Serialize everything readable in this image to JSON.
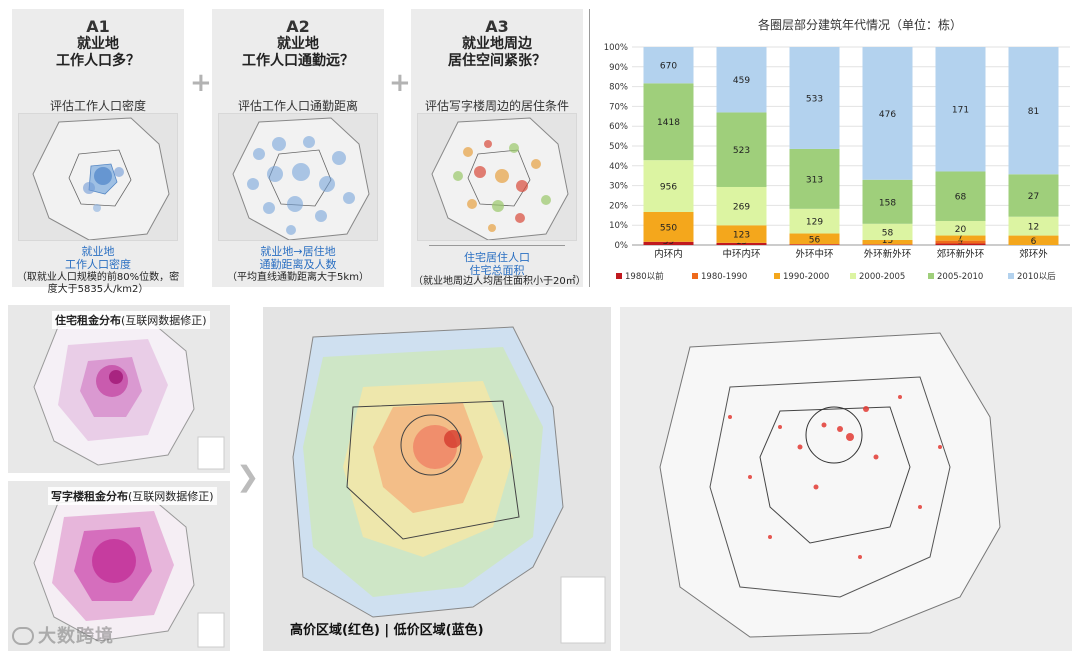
{
  "panels": [
    {
      "code": "A1",
      "q1": "就业地",
      "q2": "工作人口多？",
      "sub": "评估工作人口密度",
      "cap1": "就业地",
      "cap2": "工作人口密度",
      "note1": "（取就业人口规模的前80%位数，密",
      "note2": "度大于5835人/km2）"
    },
    {
      "code": "A2",
      "q1": "就业地",
      "q2": "工作人口通勤远？",
      "sub": "评估工作人口通勤距离",
      "cap1": "就业地→居住地",
      "cap2": "通勤距离及人数",
      "note1": "（平均直线通勤距离大于5km）",
      "note2": ""
    },
    {
      "code": "A3",
      "q1": "就业地周边",
      "q2": "居住空间紧张？",
      "sub": "评估写字楼周边的居住条件",
      "cap1": "住宅居住人口",
      "cap2": "住宅总面积",
      "note1": "（就业地周边人均居住面积小于20㎡）",
      "note2": ""
    }
  ],
  "plus_sign": "+",
  "chart_data": {
    "type": "bar",
    "stacked": true,
    "normalized": true,
    "title": "各圈层部分建筑年代情况（单位：栋）",
    "categories": [
      "内环内",
      "中环内环",
      "外环中环",
      "外环新外环",
      "郊环新外环",
      "郊环外"
    ],
    "y_ticks": [
      "0%",
      "10%",
      "20%",
      "30%",
      "40%",
      "50%",
      "60%",
      "70%",
      "80%",
      "90%",
      "100%"
    ],
    "ylim": [
      0,
      100
    ],
    "legend_position": "bottom",
    "series": [
      {
        "name": "1980以前",
        "color": "#c0191f",
        "values": [
          59,
          15,
          4,
          1,
          2,
          0
        ]
      },
      {
        "name": "1980-1990",
        "color": "#ee6a1b",
        "values": [
          0,
          0,
          0,
          2,
          4,
          0
        ]
      },
      {
        "name": "1990-2000",
        "color": "#f4a71c",
        "values": [
          550,
          123,
          56,
          15,
          7,
          6
        ]
      },
      {
        "name": "2000-2005",
        "color": "#dcf4a2",
        "values": [
          956,
          269,
          129,
          58,
          20,
          12
        ]
      },
      {
        "name": "2005-2010",
        "color": "#9fcf7b",
        "values": [
          1418,
          523,
          313,
          158,
          68,
          27
        ]
      },
      {
        "name": "2010以后",
        "color": "#b3d2ee",
        "values": [
          670,
          459,
          533,
          476,
          171,
          81
        ]
      }
    ],
    "data_labels": [
      [
        "59",
        "",
        "550",
        "956",
        "1418",
        "670"
      ],
      [
        "15",
        "",
        "123",
        "269",
        "523",
        "459"
      ],
      [
        "4",
        "",
        "56",
        "129",
        "313",
        "533"
      ],
      [
        "1",
        "2",
        "15",
        "58",
        "158",
        "476"
      ],
      [
        "2",
        "4",
        "7",
        "20",
        "68",
        "171"
      ],
      [
        "",
        "",
        "6",
        "12",
        "27",
        "81"
      ]
    ]
  },
  "maps": {
    "residential_rent_title": "住宅租金分布",
    "residential_rent_note": "(互联网数据修正)",
    "office_rent_title": "写字楼租金分布",
    "office_rent_note": "(互联网数据修正)",
    "price_caption": "高价区域(红色) | 低价区域(蓝色)"
  },
  "watermark": "大数跨境",
  "colors": {
    "panel_bg": "#ececec",
    "caption_blue": "#2a6fc2",
    "plus_gray": "#b3b3b3"
  }
}
